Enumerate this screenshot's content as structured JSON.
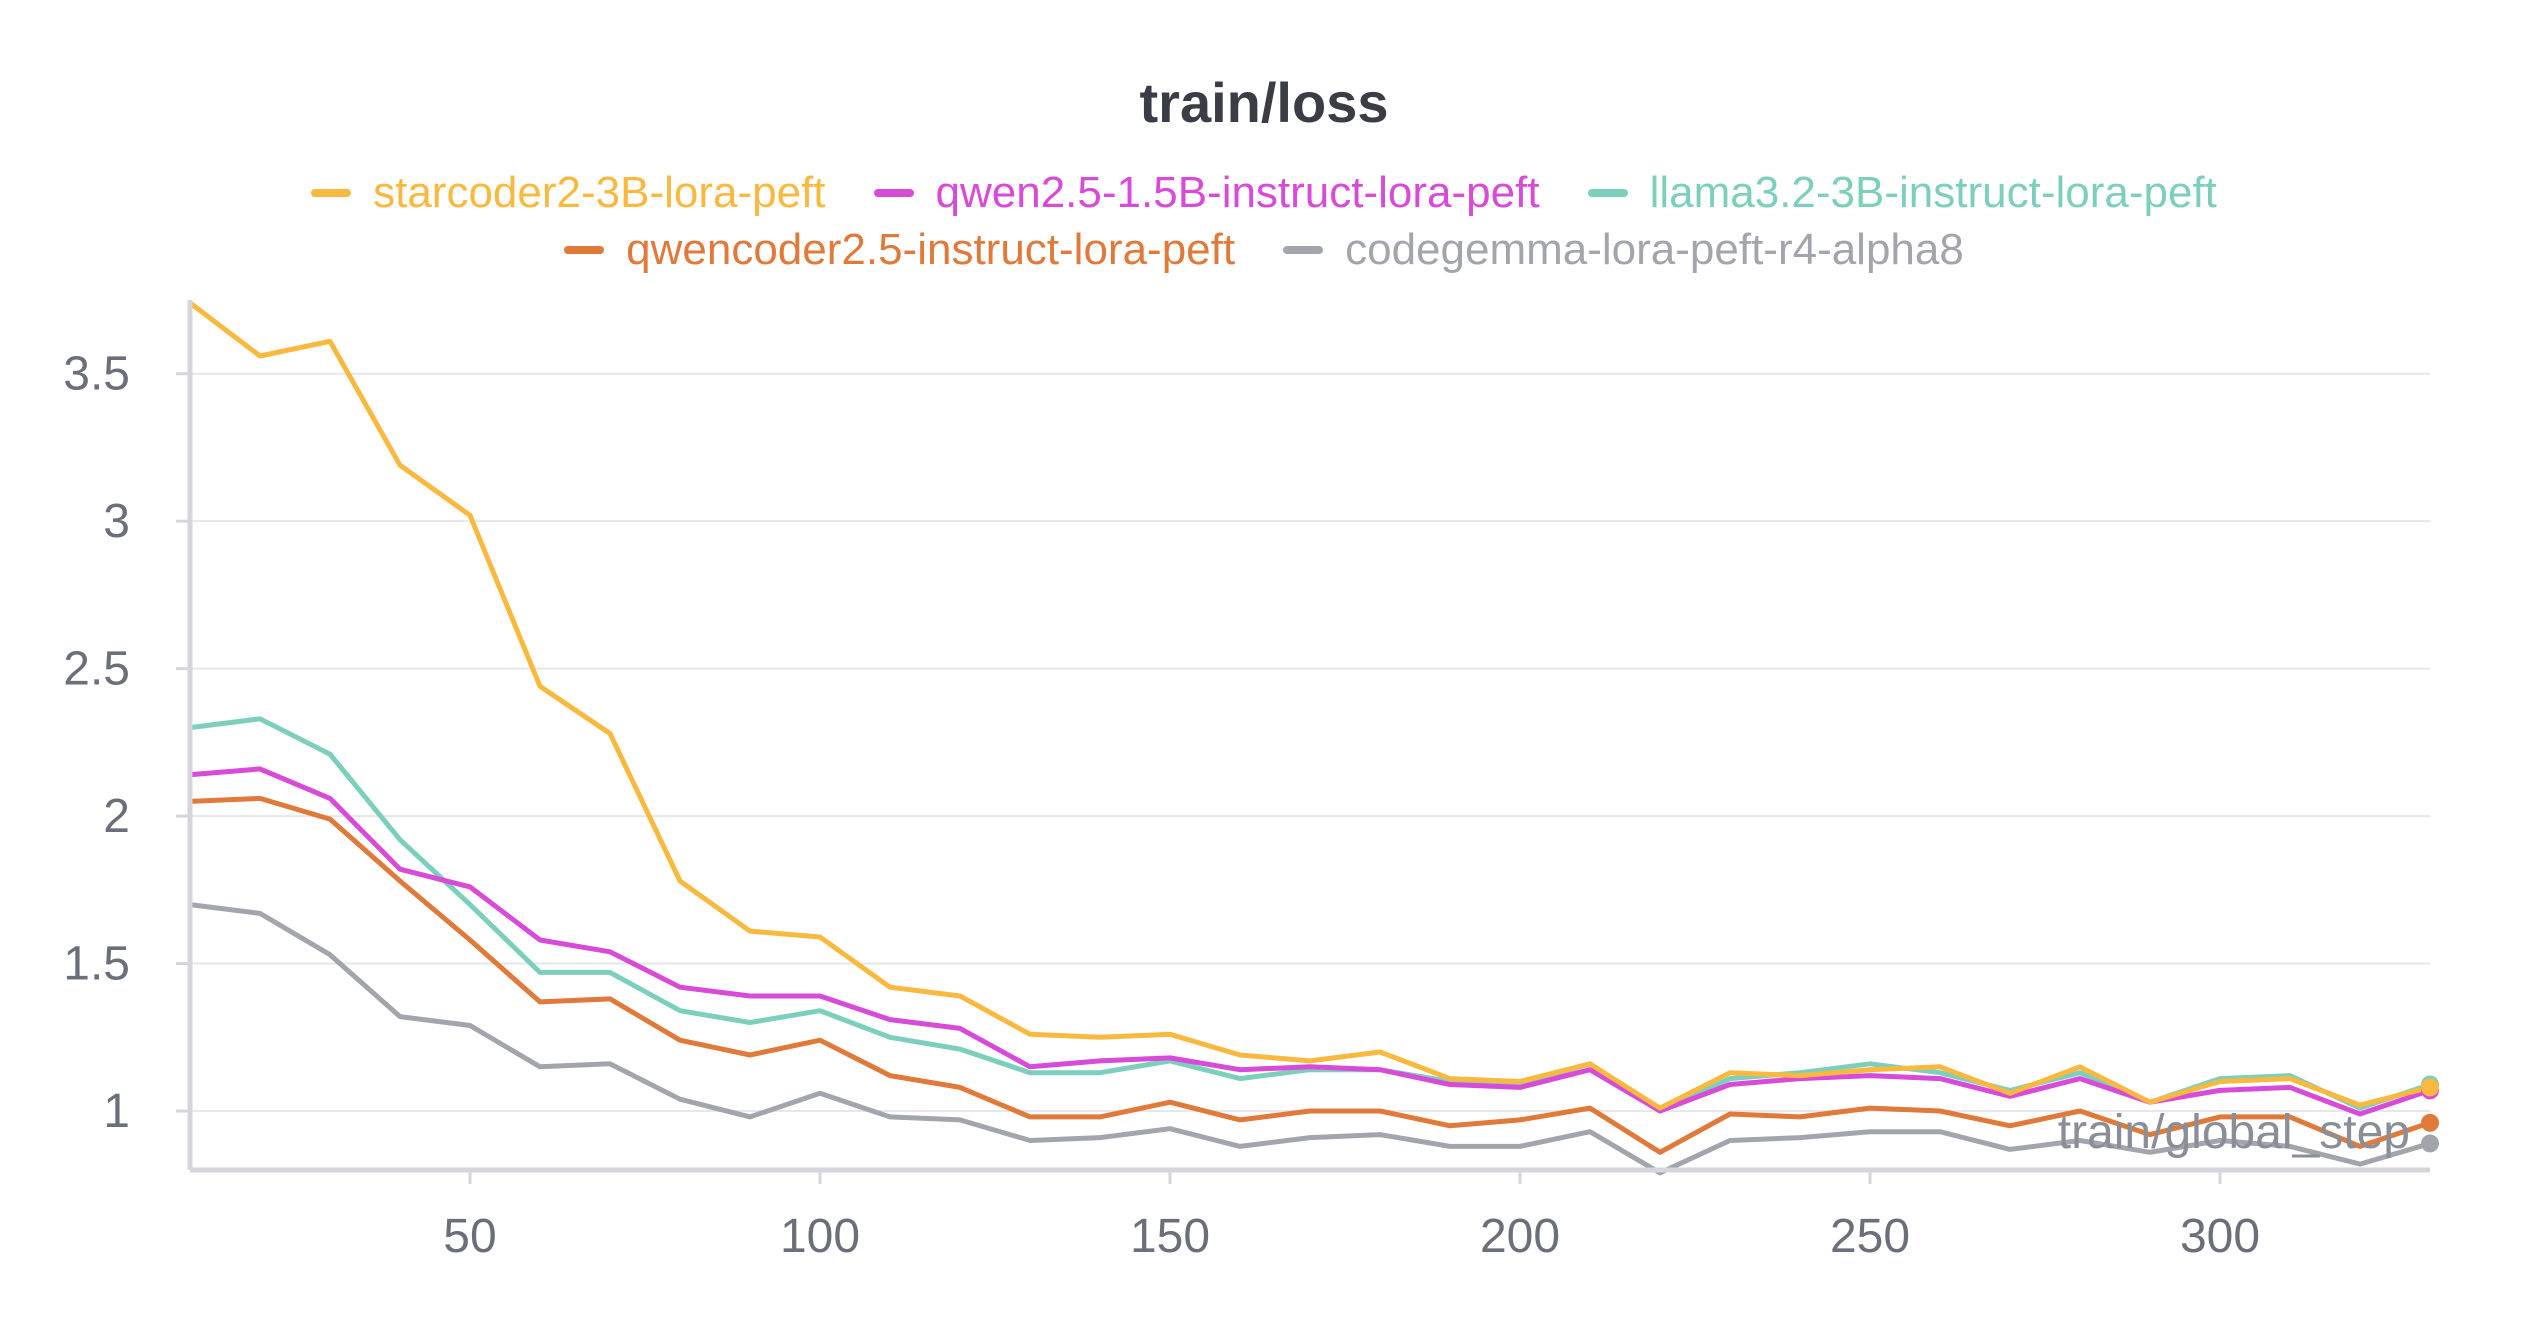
{
  "chart_data": {
    "type": "line",
    "title": "train/loss",
    "xlabel": "train/global_step",
    "ylabel": "",
    "xlim": [
      10,
      330
    ],
    "ylim": [
      0.8,
      3.75
    ],
    "xticks": [
      50,
      100,
      150,
      200,
      250,
      300
    ],
    "xtick_labels": [
      "50",
      "100",
      "150",
      "200",
      "250",
      "300"
    ],
    "yticks": [
      1,
      1.5,
      2,
      2.5,
      3,
      3.5
    ],
    "ytick_labels": [
      "1",
      "1.5",
      "2",
      "2.5",
      "3",
      "3.5"
    ],
    "grid": true,
    "legend_position": "top-center",
    "x": [
      10,
      20,
      30,
      40,
      50,
      60,
      70,
      80,
      90,
      100,
      110,
      120,
      130,
      140,
      150,
      160,
      170,
      180,
      190,
      200,
      210,
      220,
      230,
      240,
      250,
      260,
      270,
      280,
      290,
      300,
      310,
      320,
      330
    ],
    "series": [
      {
        "name": "starcoder2-3B-lora-peft",
        "color": "#f9b93f",
        "values": [
          3.74,
          3.56,
          3.61,
          3.19,
          3.02,
          2.44,
          2.28,
          1.78,
          1.61,
          1.59,
          1.42,
          1.39,
          1.26,
          1.25,
          1.26,
          1.19,
          1.17,
          1.2,
          1.11,
          1.1,
          1.16,
          1.01,
          1.13,
          1.12,
          1.14,
          1.15,
          1.06,
          1.15,
          1.03,
          1.1,
          1.11,
          1.02,
          1.08
        ]
      },
      {
        "name": "qwen2.5-1.5B-instruct-lora-peft",
        "color": "#d84ad8",
        "values": [
          2.14,
          2.16,
          2.06,
          1.82,
          1.76,
          1.58,
          1.54,
          1.42,
          1.39,
          1.39,
          1.31,
          1.28,
          1.15,
          1.17,
          1.18,
          1.14,
          1.15,
          1.14,
          1.09,
          1.08,
          1.14,
          1.0,
          1.09,
          1.11,
          1.12,
          1.11,
          1.05,
          1.11,
          1.03,
          1.07,
          1.08,
          0.99,
          1.07
        ]
      },
      {
        "name": "llama3.2-3B-instruct-lora-peft",
        "color": "#7dcfbd",
        "values": [
          2.3,
          2.33,
          2.21,
          1.92,
          1.7,
          1.47,
          1.47,
          1.34,
          1.3,
          1.34,
          1.25,
          1.21,
          1.13,
          1.13,
          1.17,
          1.11,
          1.14,
          1.14,
          1.1,
          1.09,
          1.16,
          1.0,
          1.11,
          1.13,
          1.16,
          1.13,
          1.07,
          1.13,
          1.03,
          1.11,
          1.12,
          1.01,
          1.09
        ]
      },
      {
        "name": "qwencoder2.5-instruct-lora-peft",
        "color": "#e07a3a",
        "values": [
          2.05,
          2.06,
          1.99,
          1.78,
          1.58,
          1.37,
          1.38,
          1.24,
          1.19,
          1.24,
          1.12,
          1.08,
          0.98,
          0.98,
          1.03,
          0.97,
          1.0,
          1.0,
          0.95,
          0.97,
          1.01,
          0.86,
          0.99,
          0.98,
          1.01,
          1.0,
          0.95,
          1.0,
          0.92,
          0.98,
          0.98,
          0.88,
          0.96
        ]
      },
      {
        "name": "codegemma-lora-peft-r4-alpha8",
        "color": "#a2a5ab",
        "values": [
          1.7,
          1.67,
          1.53,
          1.32,
          1.29,
          1.15,
          1.16,
          1.04,
          0.98,
          1.06,
          0.98,
          0.97,
          0.9,
          0.91,
          0.94,
          0.88,
          0.91,
          0.92,
          0.88,
          0.88,
          0.93,
          0.79,
          0.9,
          0.91,
          0.93,
          0.93,
          0.87,
          0.9,
          0.86,
          0.9,
          0.88,
          0.82,
          0.89
        ]
      }
    ]
  }
}
